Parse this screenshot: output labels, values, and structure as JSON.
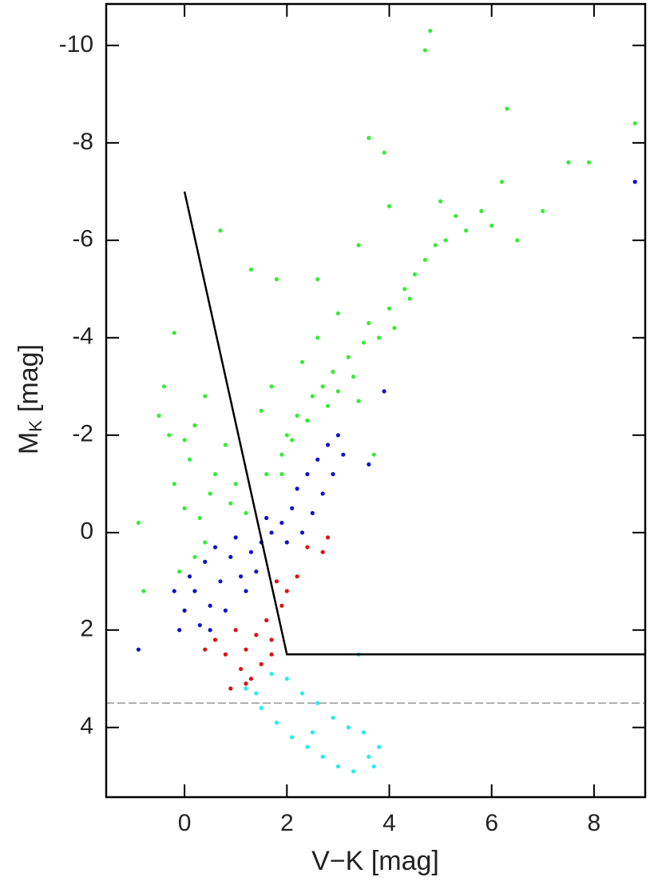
{
  "chart_data": {
    "type": "scatter",
    "xlabel": "V−K [mag]",
    "ylabel": {
      "symbol": "M",
      "subscript": "K",
      "unit": "[mag]"
    },
    "xlim": [
      -1.53,
      9.0
    ],
    "ylim": [
      5.43,
      -10.85
    ],
    "xticks": [
      0,
      2,
      4,
      6,
      8
    ],
    "yticks": [
      -10,
      -8,
      -6,
      -4,
      -2,
      0,
      2,
      4
    ],
    "reference_lines": [
      {
        "x": [
          0,
          2,
          9
        ],
        "y": [
          -7,
          2.5,
          2.5
        ],
        "color": "#000000",
        "dashed": false
      },
      {
        "x": [
          -1.53,
          9.0
        ],
        "y": [
          3.5,
          3.5
        ],
        "color": "#999999",
        "dashed": true
      }
    ],
    "series": [
      {
        "color": "#33ee33",
        "x": [
          0.0,
          -0.2,
          0.3,
          0.5,
          0.1,
          -0.3,
          0.2,
          0.6,
          0.9,
          1.2,
          -0.4,
          -0.2,
          0.4,
          0.0,
          -0.5,
          0.8,
          1.0,
          0.2,
          -0.1,
          0.4,
          1.9,
          2.0,
          2.2,
          2.4,
          2.1,
          2.5,
          2.7,
          2.9,
          3.0,
          3.2,
          3.3,
          3.5,
          3.6,
          3.8,
          4.0,
          4.1,
          4.3,
          4.5,
          4.4,
          4.7,
          4.9,
          5.1,
          5.3,
          5.5,
          5.8,
          6.0,
          6.5,
          7.0,
          6.2,
          7.5,
          7.9,
          1.5,
          1.7,
          2.3,
          2.6,
          3.0,
          1.3,
          1.8,
          2.6,
          3.4,
          4.0,
          5.0,
          3.6,
          3.9,
          4.7,
          4.8,
          6.3,
          8.8,
          0.7,
          3.7,
          1.6,
          1.9,
          2.8,
          3.4,
          -0.9,
          -0.8
        ],
        "y": [
          -0.5,
          -1.0,
          -0.3,
          -0.8,
          -1.5,
          -2.0,
          -2.2,
          -1.2,
          -0.6,
          -0.4,
          -3.0,
          -4.1,
          -2.8,
          -1.9,
          -2.4,
          -1.8,
          -1.0,
          0.5,
          0.8,
          0.2,
          -1.6,
          -2.0,
          -2.4,
          -2.3,
          -1.9,
          -2.8,
          -3.0,
          -3.3,
          -2.9,
          -3.6,
          -3.2,
          -3.9,
          -4.3,
          -4.0,
          -4.6,
          -4.2,
          -5.0,
          -5.3,
          -4.8,
          -5.6,
          -5.9,
          -6.0,
          -6.5,
          -6.2,
          -6.6,
          -6.3,
          -6.0,
          -6.6,
          -7.2,
          -7.6,
          -7.6,
          -2.5,
          -3.0,
          -3.5,
          -4.0,
          -4.5,
          -5.4,
          -5.2,
          -5.2,
          -5.9,
          -6.7,
          -6.8,
          -8.1,
          -7.8,
          -9.9,
          -10.3,
          -8.7,
          -8.4,
          -6.2,
          -1.6,
          -1.2,
          -1.2,
          -2.6,
          -2.7,
          -0.2,
          1.2
        ]
      },
      {
        "color": "#1010cc",
        "x": [
          -0.2,
          0.0,
          0.3,
          0.2,
          0.5,
          0.7,
          0.4,
          0.9,
          1.1,
          1.3,
          0.6,
          1.0,
          1.5,
          1.7,
          -0.1,
          0.8,
          1.2,
          1.9,
          2.1,
          2.2,
          2.4,
          2.6,
          2.8,
          3.0,
          2.3,
          2.5,
          2.7,
          2.9,
          3.1,
          2.0,
          1.6,
          -0.9,
          3.6,
          3.9,
          8.8,
          0.1,
          0.5,
          1.4
        ],
        "y": [
          1.2,
          1.6,
          1.9,
          1.2,
          1.5,
          1.0,
          0.6,
          0.5,
          0.9,
          0.4,
          0.3,
          0.1,
          0.2,
          0.0,
          2.0,
          1.6,
          1.2,
          -0.2,
          -0.5,
          -0.9,
          -1.2,
          -1.5,
          -1.8,
          -2.0,
          0.0,
          -0.4,
          -0.8,
          -1.2,
          -1.6,
          0.2,
          -0.3,
          2.4,
          -1.4,
          -2.9,
          -7.2,
          0.9,
          2.0,
          0.8
        ]
      },
      {
        "color": "#e01010",
        "x": [
          1.0,
          1.2,
          1.4,
          0.8,
          1.1,
          1.3,
          1.5,
          1.7,
          1.6,
          1.9,
          2.0,
          1.8,
          2.2,
          2.4,
          0.6,
          0.4,
          0.9,
          1.2,
          1.7,
          2.7,
          2.8
        ],
        "y": [
          2.0,
          2.4,
          2.1,
          2.5,
          2.8,
          3.0,
          2.7,
          2.2,
          1.8,
          1.5,
          1.2,
          1.0,
          0.9,
          0.3,
          2.2,
          2.4,
          3.2,
          3.1,
          2.5,
          0.4,
          0.1
        ]
      },
      {
        "color": "#22eeee",
        "x": [
          1.2,
          1.5,
          1.8,
          2.1,
          2.4,
          2.7,
          3.0,
          3.3,
          3.6,
          3.8,
          3.5,
          3.2,
          2.9,
          2.6,
          2.3,
          2.0,
          1.7,
          2.5,
          1.4,
          3.4,
          3.7
        ],
        "y": [
          3.2,
          3.6,
          3.9,
          4.2,
          4.4,
          4.6,
          4.8,
          4.9,
          4.6,
          4.4,
          4.1,
          4.0,
          3.8,
          3.5,
          3.3,
          3.0,
          2.9,
          4.1,
          3.3,
          2.5,
          4.8
        ]
      }
    ]
  }
}
